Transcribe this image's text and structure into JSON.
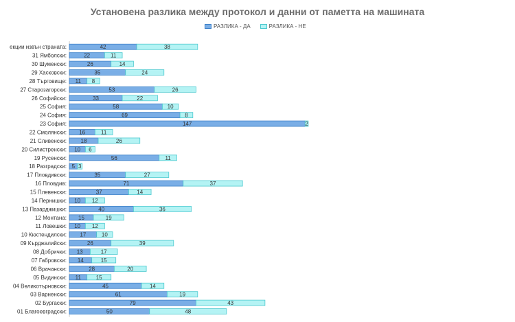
{
  "chart_data": {
    "type": "bar",
    "orientation": "horizontal",
    "stacked": true,
    "title": "Установена разлика между протокол и данни от паметта на машината",
    "legend_position": "top",
    "categories": [
      "01 Благоевградски:",
      "02 Бургаски:",
      "03 Варненски:",
      "04 Великотърновски:",
      "05 Видински:",
      "06 Врачански:",
      "07 Габровски:",
      "08 Добрички:",
      "09 Кърджалийски:",
      "10 Кюстендилски:",
      "11 Ловешки:",
      "12 Монтана:",
      "13 Пазарджишки:",
      "14 Пернишки:",
      "15 Плевенски:",
      "16 Пловдив:",
      "17 Пловдивски:",
      "18 Разградски:",
      "19 Русенски:",
      "20 Силистренски:",
      "21 Сливенски:",
      "22 Смолянски:",
      "23 София:",
      "24 София:",
      "25 София:",
      "26 Софийски:",
      "27 Старозагорски:",
      "28 Търговище:",
      "29 Хасковски:",
      "30 Шуменски:",
      "31 Ямболски:",
      "екции извън страната:"
    ],
    "series": [
      {
        "name": "РАЗЛИКА - ДА",
        "values": [
          50,
          79,
          61,
          45,
          11,
          28,
          14,
          13,
          26,
          17,
          10,
          15,
          40,
          10,
          37,
          71,
          35,
          5,
          56,
          10,
          18,
          16,
          147,
          69,
          58,
          33,
          53,
          11,
          35,
          26,
          22,
          42
        ]
      },
      {
        "name": "РАЗЛИКА - НЕ",
        "values": [
          48,
          43,
          19,
          14,
          15,
          20,
          15,
          17,
          39,
          10,
          12,
          19,
          36,
          12,
          14,
          37,
          27,
          3,
          11,
          6,
          26,
          11,
          2,
          8,
          10,
          22,
          26,
          8,
          24,
          14,
          11,
          38
        ]
      }
    ],
    "colors": {
      "da_fill": "#7aaee6",
      "da_stroke": "#3c80c8",
      "ne_fill": "#b4f3f4",
      "ne_stroke": "#4cc9cf"
    }
  }
}
